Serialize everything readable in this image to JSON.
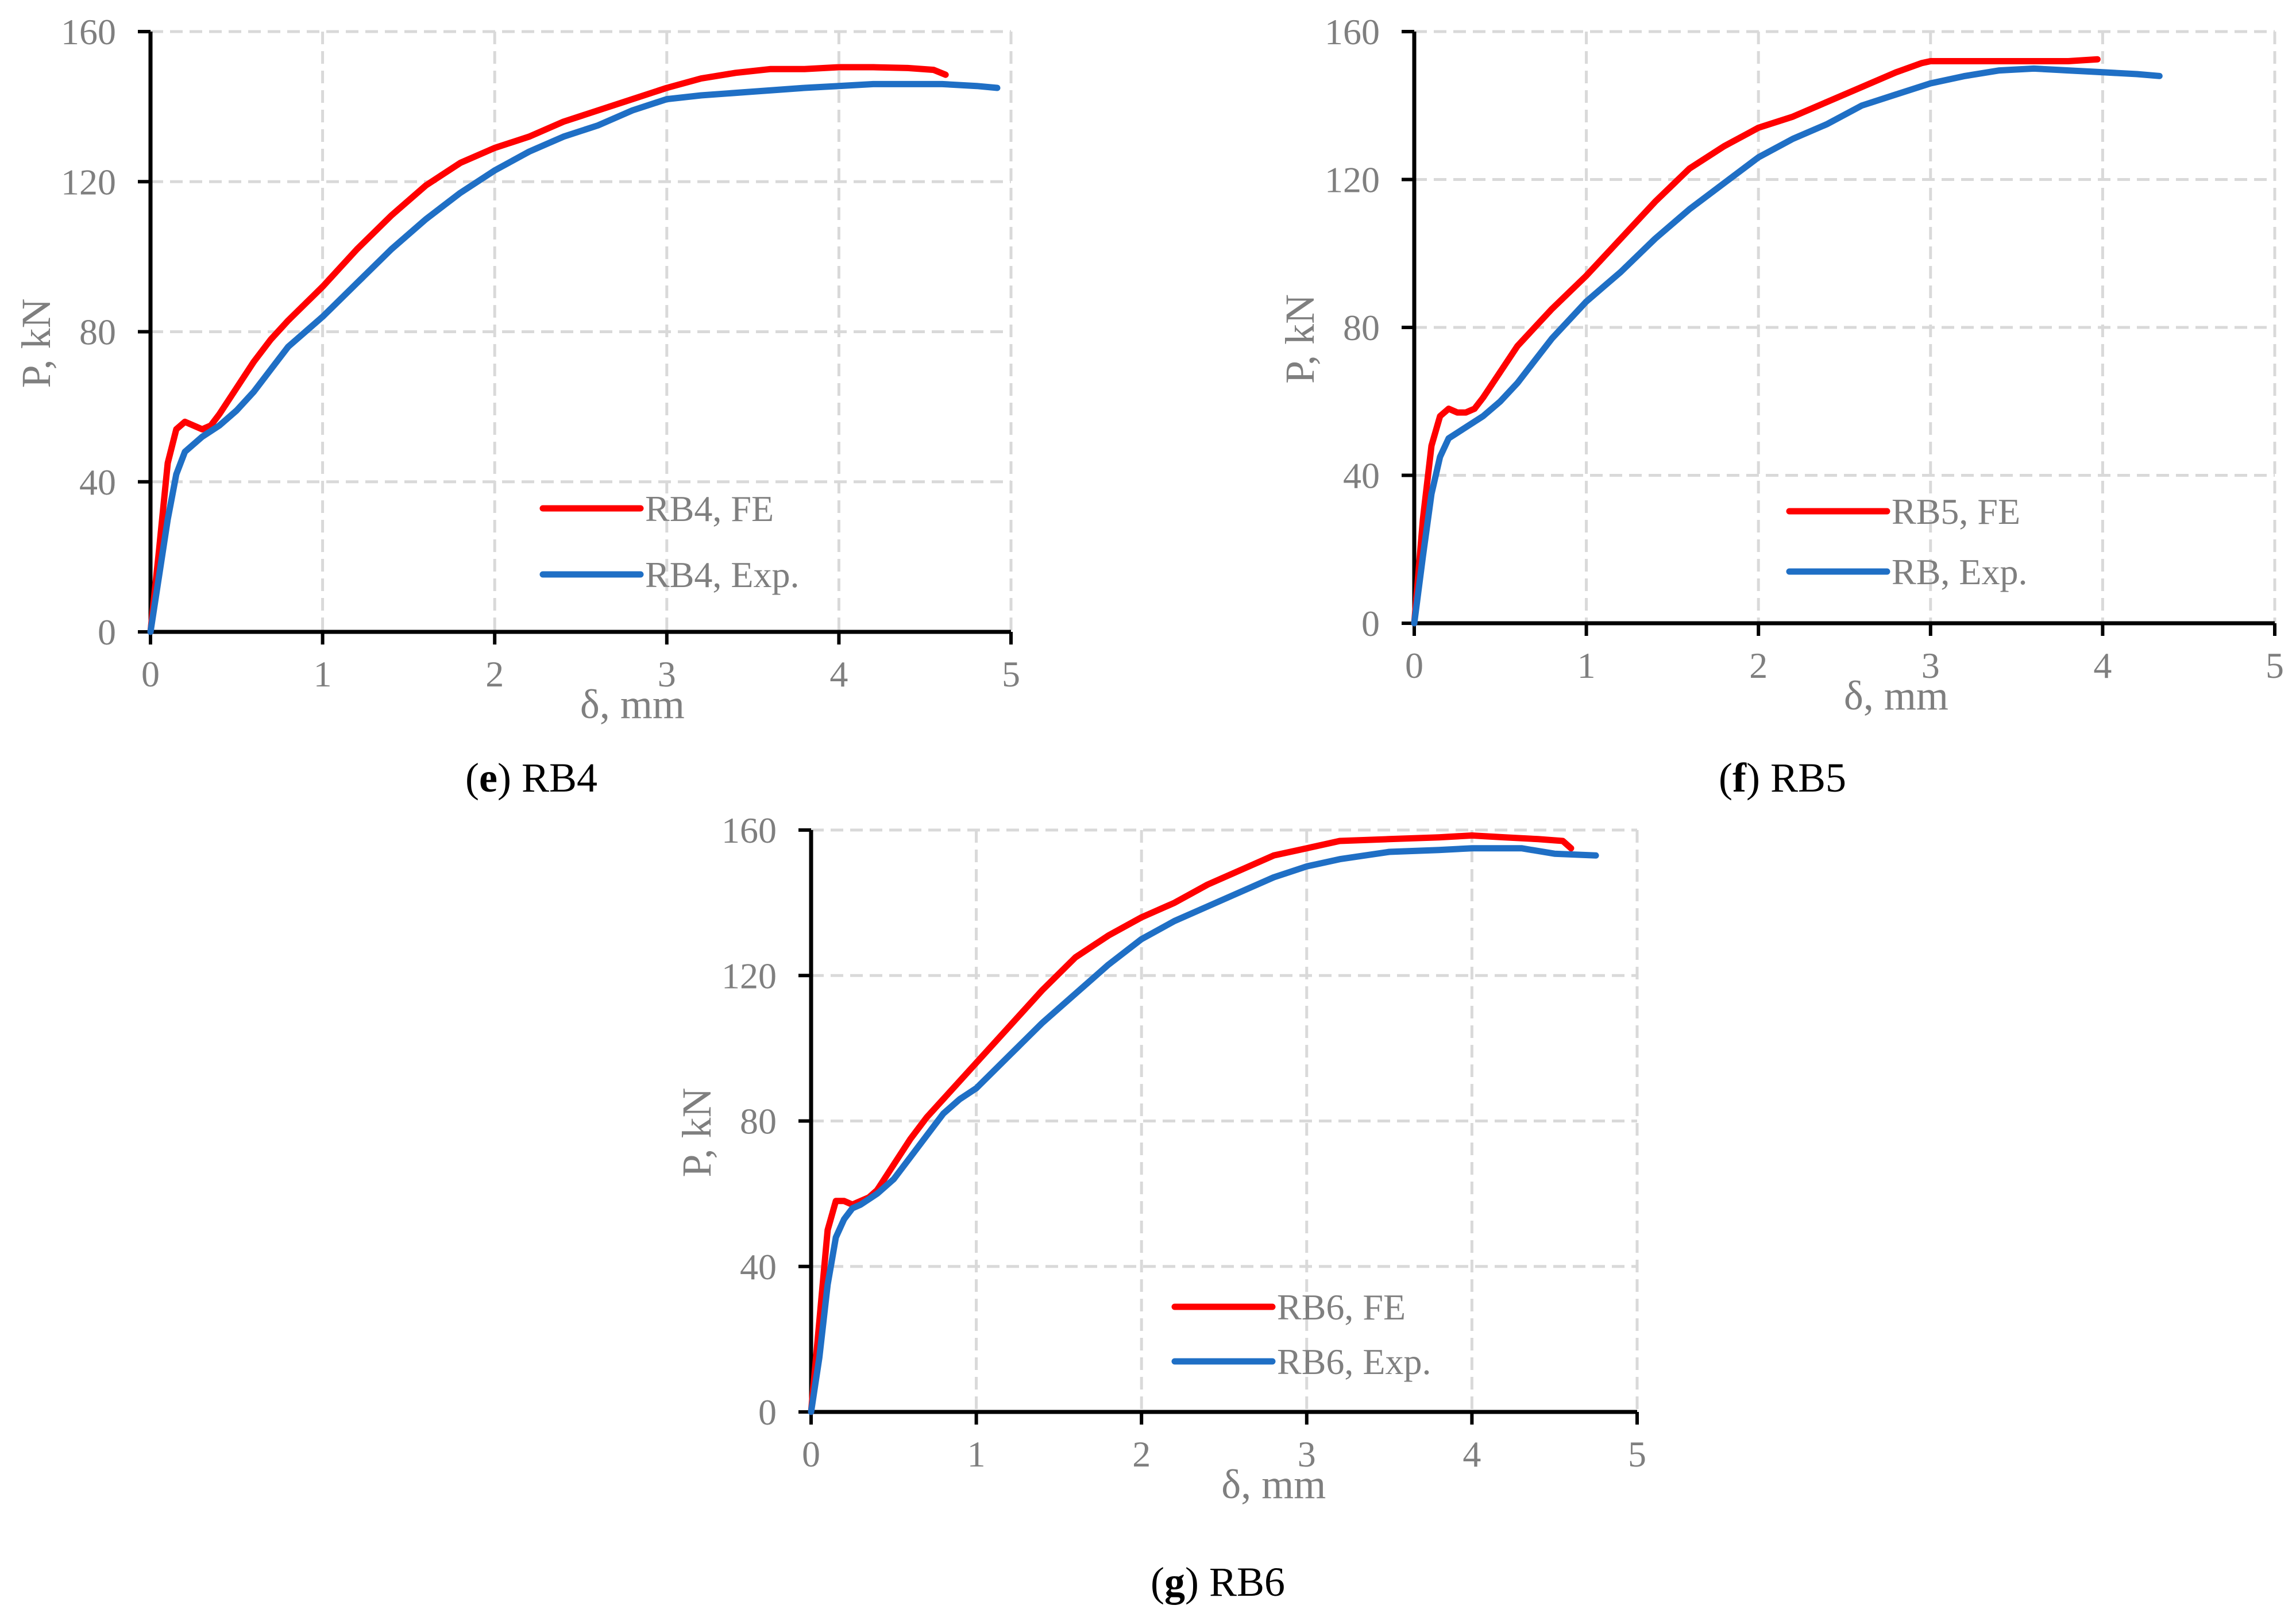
{
  "chart_data": [
    {
      "type": "line",
      "caption_letter": "e",
      "caption_text": "RB4",
      "xlabel": "δ, mm",
      "ylabel": "P, kN",
      "xlim": [
        0,
        5
      ],
      "ylim": [
        0,
        160
      ],
      "xticks": [
        "0",
        "1",
        "2",
        "3",
        "4",
        "5"
      ],
      "yticks": [
        "0",
        "40",
        "80",
        "120",
        "160"
      ],
      "grid": true,
      "legend_position": "center-right",
      "series": [
        {
          "name": "RB4, FE",
          "color": "#ff0000",
          "x": [
            0,
            0.05,
            0.1,
            0.15,
            0.2,
            0.25,
            0.3,
            0.35,
            0.4,
            0.5,
            0.6,
            0.7,
            0.8,
            1.0,
            1.2,
            1.4,
            1.6,
            1.8,
            2.0,
            2.2,
            2.4,
            2.6,
            2.8,
            3.0,
            3.2,
            3.4,
            3.6,
            3.8,
            4.0,
            4.2,
            4.4,
            4.55,
            4.62
          ],
          "y": [
            0,
            22,
            45,
            54,
            56,
            55,
            54,
            55,
            58,
            65,
            72,
            78,
            83,
            92,
            102,
            111,
            119,
            125,
            129,
            132,
            136,
            139,
            142,
            145,
            147.5,
            149,
            150,
            150,
            150.5,
            150.5,
            150.3,
            149.8,
            148.5
          ]
        },
        {
          "name": "RB4, Exp.",
          "color": "#1f6fc5",
          "x": [
            0,
            0.05,
            0.1,
            0.15,
            0.2,
            0.3,
            0.4,
            0.5,
            0.6,
            0.7,
            0.8,
            1.0,
            1.2,
            1.4,
            1.6,
            1.8,
            2.0,
            2.2,
            2.4,
            2.6,
            2.8,
            3.0,
            3.2,
            3.5,
            3.8,
            4.0,
            4.2,
            4.4,
            4.6,
            4.8,
            4.92
          ],
          "y": [
            0,
            15,
            30,
            42,
            48,
            52,
            55,
            59,
            64,
            70,
            76,
            84,
            93,
            102,
            110,
            117,
            123,
            128,
            132,
            135,
            139,
            142,
            143,
            144,
            145,
            145.5,
            146,
            146,
            146,
            145.5,
            145
          ]
        }
      ]
    },
    {
      "type": "line",
      "caption_letter": "f",
      "caption_text": "RB5",
      "xlabel": "δ, mm",
      "ylabel": "P, kN",
      "xlim": [
        0,
        5
      ],
      "ylim": [
        0,
        160
      ],
      "xticks": [
        "0",
        "1",
        "2",
        "3",
        "4",
        "5"
      ],
      "yticks": [
        "0",
        "40",
        "80",
        "120",
        "160"
      ],
      "grid": true,
      "legend_position": "center-right",
      "series": [
        {
          "name": "RB5, FE",
          "color": "#ff0000",
          "x": [
            0,
            0.05,
            0.1,
            0.15,
            0.2,
            0.25,
            0.3,
            0.35,
            0.4,
            0.5,
            0.6,
            0.7,
            0.8,
            1.0,
            1.2,
            1.4,
            1.6,
            1.8,
            2.0,
            2.2,
            2.4,
            2.6,
            2.8,
            2.95,
            3.0,
            3.2,
            3.5,
            3.8,
            3.97
          ],
          "y": [
            0,
            28,
            48,
            56,
            58,
            57,
            57,
            58,
            61,
            68,
            75,
            80,
            85,
            94,
            104,
            114,
            123,
            129,
            134,
            137,
            141,
            145,
            149,
            151.5,
            152,
            152,
            152,
            152,
            152.5
          ]
        },
        {
          "name": "RB, Exp.",
          "color": "#1f6fc5",
          "x": [
            0,
            0.05,
            0.1,
            0.15,
            0.2,
            0.3,
            0.4,
            0.5,
            0.6,
            0.7,
            0.8,
            1.0,
            1.2,
            1.4,
            1.6,
            1.8,
            2.0,
            2.2,
            2.4,
            2.6,
            2.8,
            3.0,
            3.2,
            3.4,
            3.6,
            3.8,
            4.0,
            4.2,
            4.33
          ],
          "y": [
            0,
            18,
            35,
            45,
            50,
            53,
            56,
            60,
            65,
            71,
            77,
            87,
            95,
            104,
            112,
            119,
            126,
            131,
            135,
            140,
            143,
            146,
            148,
            149.5,
            150,
            149.5,
            149,
            148.5,
            148
          ]
        }
      ]
    },
    {
      "type": "line",
      "caption_letter": "g",
      "caption_text": "RB6",
      "xlabel": "δ, mm",
      "ylabel": "P, kN",
      "xlim": [
        0,
        5
      ],
      "ylim": [
        0,
        160
      ],
      "xticks": [
        "0",
        "1",
        "2",
        "3",
        "4",
        "5"
      ],
      "yticks": [
        "0",
        "40",
        "80",
        "120",
        "160"
      ],
      "grid": true,
      "legend_position": "bottom-right",
      "series": [
        {
          "name": "RB6, FE",
          "color": "#ff0000",
          "x": [
            0,
            0.05,
            0.1,
            0.15,
            0.2,
            0.25,
            0.3,
            0.35,
            0.4,
            0.5,
            0.6,
            0.7,
            0.8,
            1.0,
            1.2,
            1.4,
            1.6,
            1.8,
            2.0,
            2.2,
            2.4,
            2.6,
            2.8,
            3.0,
            3.2,
            3.5,
            3.8,
            4.0,
            4.2,
            4.4,
            4.55,
            4.6
          ],
          "y": [
            0,
            25,
            50,
            58,
            58,
            57,
            58,
            59,
            61,
            68,
            75,
            81,
            86,
            96,
            106,
            116,
            125,
            131,
            136,
            140,
            145,
            149,
            153,
            155,
            157,
            157.5,
            158,
            158.5,
            158,
            157.5,
            157,
            155
          ]
        },
        {
          "name": "RB6, Exp.",
          "color": "#1f6fc5",
          "x": [
            0,
            0.05,
            0.1,
            0.15,
            0.2,
            0.25,
            0.3,
            0.4,
            0.5,
            0.6,
            0.7,
            0.8,
            0.9,
            1.0,
            1.2,
            1.4,
            1.6,
            1.8,
            2.0,
            2.2,
            2.4,
            2.6,
            2.8,
            3.0,
            3.2,
            3.5,
            3.8,
            4.0,
            4.3,
            4.5,
            4.75
          ],
          "y": [
            0,
            15,
            35,
            48,
            53,
            56,
            57,
            60,
            64,
            70,
            76,
            82,
            86,
            89,
            98,
            107,
            115,
            123,
            130,
            135,
            139,
            143,
            147,
            150,
            152,
            154,
            154.5,
            155,
            155,
            153.5,
            153
          ]
        }
      ]
    }
  ]
}
